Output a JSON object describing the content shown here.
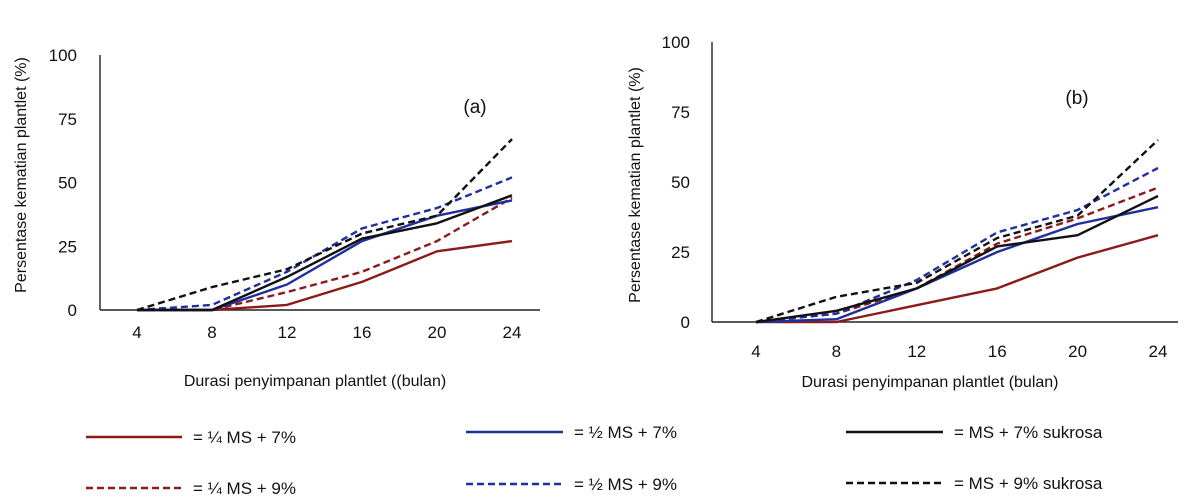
{
  "chart_data": [
    {
      "type": "line",
      "panel_label": "(a)",
      "xlabel": "Durasi penyimpanan plantlet ((bulan)",
      "ylabel": "Persentase kematian plantlet (%)",
      "x": [
        4,
        8,
        12,
        16,
        20,
        24
      ],
      "yticks": [
        0,
        25,
        50,
        75,
        100
      ],
      "ylim": [
        0,
        100
      ],
      "xlim": [
        4,
        24
      ],
      "series": [
        {
          "key": "q7",
          "values": [
            0,
            0,
            2,
            11,
            23,
            27
          ]
        },
        {
          "key": "q9",
          "values": [
            0,
            0,
            7,
            15,
            27,
            44
          ]
        },
        {
          "key": "h7",
          "values": [
            0,
            0,
            10,
            27,
            37,
            43
          ]
        },
        {
          "key": "h9",
          "values": [
            0,
            2,
            15,
            32,
            40,
            52
          ]
        },
        {
          "key": "f7",
          "values": [
            0,
            0,
            13,
            28,
            34,
            45
          ]
        },
        {
          "key": "f9",
          "values": [
            0,
            9,
            16,
            30,
            37,
            67
          ]
        }
      ]
    },
    {
      "type": "line",
      "panel_label": "(b)",
      "xlabel": "Durasi penyimpanan plantlet (bulan)",
      "ylabel": "Persentase kematian plantlet (%)",
      "x": [
        4,
        8,
        12,
        16,
        20,
        24
      ],
      "yticks": [
        0,
        25,
        50,
        75,
        100
      ],
      "ylim": [
        0,
        100
      ],
      "xlim": [
        4,
        24
      ],
      "series": [
        {
          "key": "q7",
          "values": [
            0,
            0,
            6,
            12,
            23,
            31
          ]
        },
        {
          "key": "q9",
          "values": [
            0,
            3,
            12,
            28,
            37,
            48
          ]
        },
        {
          "key": "h7",
          "values": [
            0,
            1,
            12,
            25,
            35,
            41
          ]
        },
        {
          "key": "h9",
          "values": [
            0,
            3,
            15,
            32,
            40,
            55
          ]
        },
        {
          "key": "f7",
          "values": [
            0,
            4,
            12,
            27,
            31,
            45
          ]
        },
        {
          "key": "f9",
          "values": [
            0,
            9,
            14,
            30,
            38,
            65
          ]
        }
      ]
    }
  ],
  "legend": [
    {
      "key": "q7",
      "label": "= ¼ MS + 7%"
    },
    {
      "key": "h7",
      "label": "= ½ MS + 7%"
    },
    {
      "key": "f7",
      "label": "= MS + 7% sukrosa"
    },
    {
      "key": "q9",
      "label": "= ¼ MS + 9%"
    },
    {
      "key": "h9",
      "label": "= ½ MS + 9%"
    },
    {
      "key": "f9",
      "label": "= MS + 9% sukrosa"
    }
  ],
  "series_styles": {
    "q7": {
      "color": "#8b1a1a",
      "dash": "solid"
    },
    "q9": {
      "color": "#8b1a1a",
      "dash": "dashed"
    },
    "h7": {
      "color": "#1f2f9f",
      "dash": "solid"
    },
    "h9": {
      "color": "#1f2f9f",
      "dash": "dashed"
    },
    "f7": {
      "color": "#111111",
      "dash": "solid"
    },
    "f9": {
      "color": "#111111",
      "dash": "dashed"
    }
  }
}
